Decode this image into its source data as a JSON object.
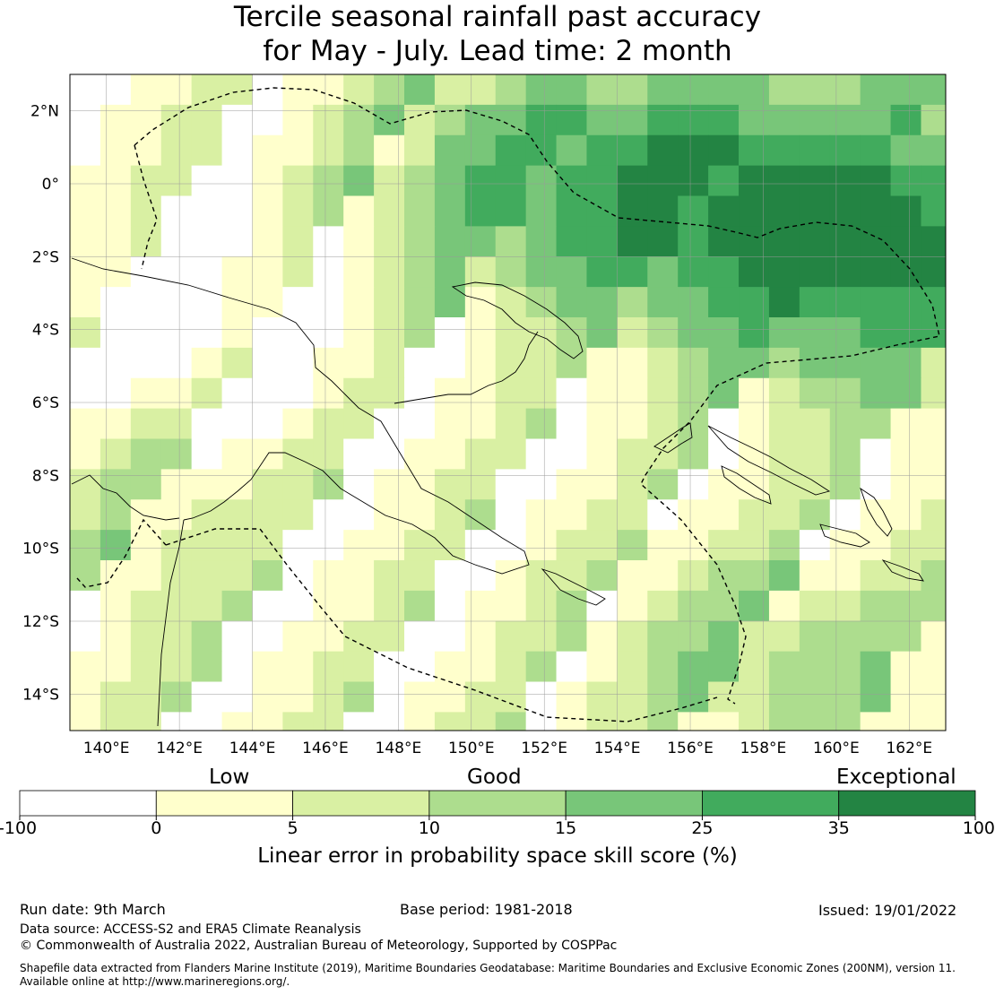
{
  "title": {
    "line1": "Tercile seasonal rainfall past accuracy",
    "line2": "for May - July. Lead time: 2 month"
  },
  "map": {
    "lat_ticks": [
      "2°N",
      "0°",
      "2°S",
      "4°S",
      "6°S",
      "8°S",
      "10°S",
      "12°S",
      "14°S"
    ],
    "lon_ticks": [
      "140°E",
      "142°E",
      "144°E",
      "146°E",
      "148°E",
      "150°E",
      "152°E",
      "154°E",
      "156°E",
      "158°E",
      "160°E",
      "162°E"
    ],
    "lon_range": [
      139,
      163
    ],
    "lat_range": [
      -15,
      3
    ],
    "cell_deg": 0.833
  },
  "colorbar": {
    "category_labels": [
      "Low",
      "Good",
      "Exceptional"
    ],
    "boundaries": [
      "-100",
      "0",
      "5",
      "10",
      "15",
      "25",
      "35",
      "100"
    ],
    "colors": [
      "#ffffff",
      "#ffffcc",
      "#d9f0a3",
      "#addd8e",
      "#78c679",
      "#41ab5d",
      "#238443"
    ],
    "title": "Linear error in probability space skill score (%)"
  },
  "footer": {
    "run_date": "Run date: 9th March",
    "base_period": "Base period: 1981-2018",
    "issued": "Issued: 19/01/2022",
    "data_source": "Data source: ACCESS-S2 and ERA5 Climate Reanalysis",
    "copyright": "© Commonwealth of Australia 2022, Australian Bureau of Meteorology, Supported by COSPPac",
    "shapefile_line1": "Shapefile data extracted from Flanders Marine Institute (2019), Maritime Boundaries Geodatabase: Maritime Boundaries and Exclusive Economic Zones (200NM), version 11.",
    "shapefile_line2": "Available online at http://www.marineregions.org/."
  }
}
